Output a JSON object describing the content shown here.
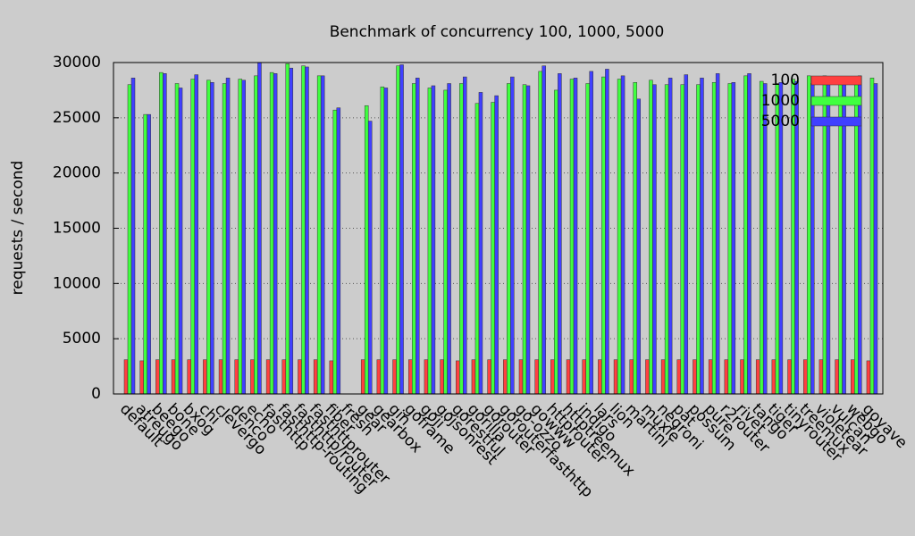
{
  "chart_data": {
    "type": "bar",
    "title": "Benchmark of concurrency 100, 1000, 5000",
    "y_label": "requests / second",
    "categories": [
      "default",
      "atreugo",
      "beego",
      "bone",
      "bxog",
      "chi",
      "clevergo",
      "denco",
      "echo",
      "fasthttp",
      "fasthttp-routing",
      "fasthttp/router",
      "fasthttprouter",
      "fiber",
      "fresh",
      "gear",
      "gearbox",
      "gin",
      "goframe",
      "goji",
      "gojsonrest",
      "gorestful",
      "gorilla",
      "gorouter",
      "gorouterfasthttp",
      "go-ozzo",
      "gowww",
      "httprouter",
      "httptreemux",
      "indigo",
      "lars",
      "lion",
      "martini",
      "muxie",
      "negroni",
      "pat",
      "possum",
      "pure",
      "r2router",
      "rivet",
      "tango",
      "tiger",
      "tinyrouter",
      "treemux",
      "violetear",
      "vulcan",
      "webgo",
      "goyave"
    ],
    "series": [
      {
        "name": "100",
        "color": "#ff4040",
        "values": [
          3100,
          3000,
          3100,
          3100,
          3100,
          3100,
          3100,
          3100,
          3100,
          3100,
          3100,
          3100,
          3100,
          3000,
          0,
          3100,
          3100,
          3100,
          3100,
          3100,
          3100,
          3000,
          3100,
          3100,
          3100,
          3100,
          3100,
          3100,
          3100,
          3100,
          3100,
          3100,
          3100,
          3100,
          3100,
          3100,
          3100,
          3100,
          3100,
          3100,
          3100,
          3100,
          3100,
          3100,
          3100,
          3100,
          3100,
          3000
        ]
      },
      {
        "name": "1000",
        "color": "#40ff40",
        "values": [
          28000,
          25300,
          29100,
          28100,
          28500,
          28400,
          28100,
          28500,
          28800,
          29100,
          29900,
          29700,
          28800,
          25700,
          0,
          26100,
          27800,
          29700,
          28100,
          27700,
          27500,
          28100,
          26300,
          26400,
          28100,
          28000,
          29200,
          27500,
          28500,
          28100,
          28700,
          28500,
          28200,
          28400,
          28000,
          28000,
          28000,
          28200,
          28100,
          28800,
          28300,
          28100,
          28500,
          28800,
          28800,
          28700,
          28500,
          28600
        ]
      },
      {
        "name": "5000",
        "color": "#4040ff",
        "values": [
          28600,
          25300,
          29000,
          27700,
          28900,
          28200,
          28600,
          28400,
          30000,
          29000,
          29500,
          29600,
          28800,
          25900,
          0,
          24700,
          27700,
          29800,
          28600,
          27900,
          28100,
          28700,
          27300,
          27000,
          28700,
          27900,
          29700,
          29000,
          28600,
          29200,
          29400,
          28800,
          26700,
          28000,
          28600,
          28900,
          28600,
          29000,
          28200,
          29000,
          28100,
          28200,
          28300,
          28100,
          28500,
          28700,
          28800,
          28100
        ]
      }
    ],
    "ylim": [
      0,
      30000
    ],
    "yticks": [
      0,
      5000,
      10000,
      15000,
      20000,
      25000,
      30000
    ],
    "grid": true,
    "legend": "top right"
  }
}
